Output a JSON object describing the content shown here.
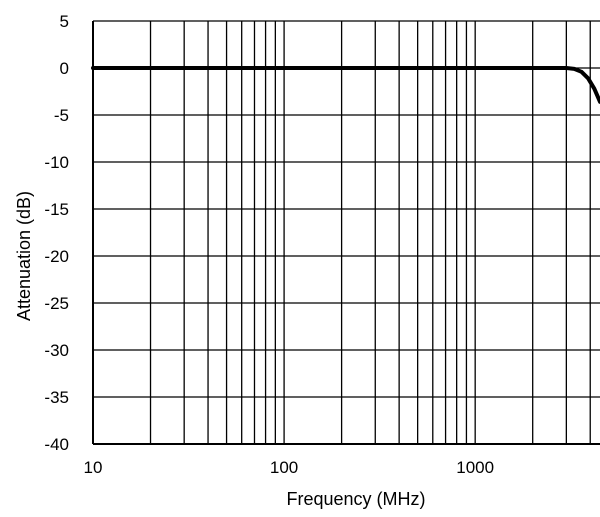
{
  "chart_data": {
    "type": "line",
    "title": "",
    "xlabel": "Frequency (MHz)",
    "ylabel": "Attenuation (dB)",
    "x_scale": "log",
    "xlim": [
      10,
      4500
    ],
    "ylim": [
      -40,
      5
    ],
    "x_ticks": [
      10,
      100,
      1000
    ],
    "y_ticks": [
      5,
      0,
      -5,
      -10,
      -15,
      -20,
      -25,
      -30,
      -35,
      -40
    ],
    "grid": true,
    "legend": "none",
    "colors": {
      "line": "#000000",
      "grid": "#000000",
      "background": "#ffffff"
    },
    "series": [
      {
        "x": [
          10,
          100,
          1000,
          3000,
          3300,
          3600,
          3900,
          4200,
          4500
        ],
        "y": [
          0,
          0,
          0,
          0,
          -0.1,
          -0.4,
          -1.1,
          -2.2,
          -3.6
        ]
      }
    ]
  }
}
